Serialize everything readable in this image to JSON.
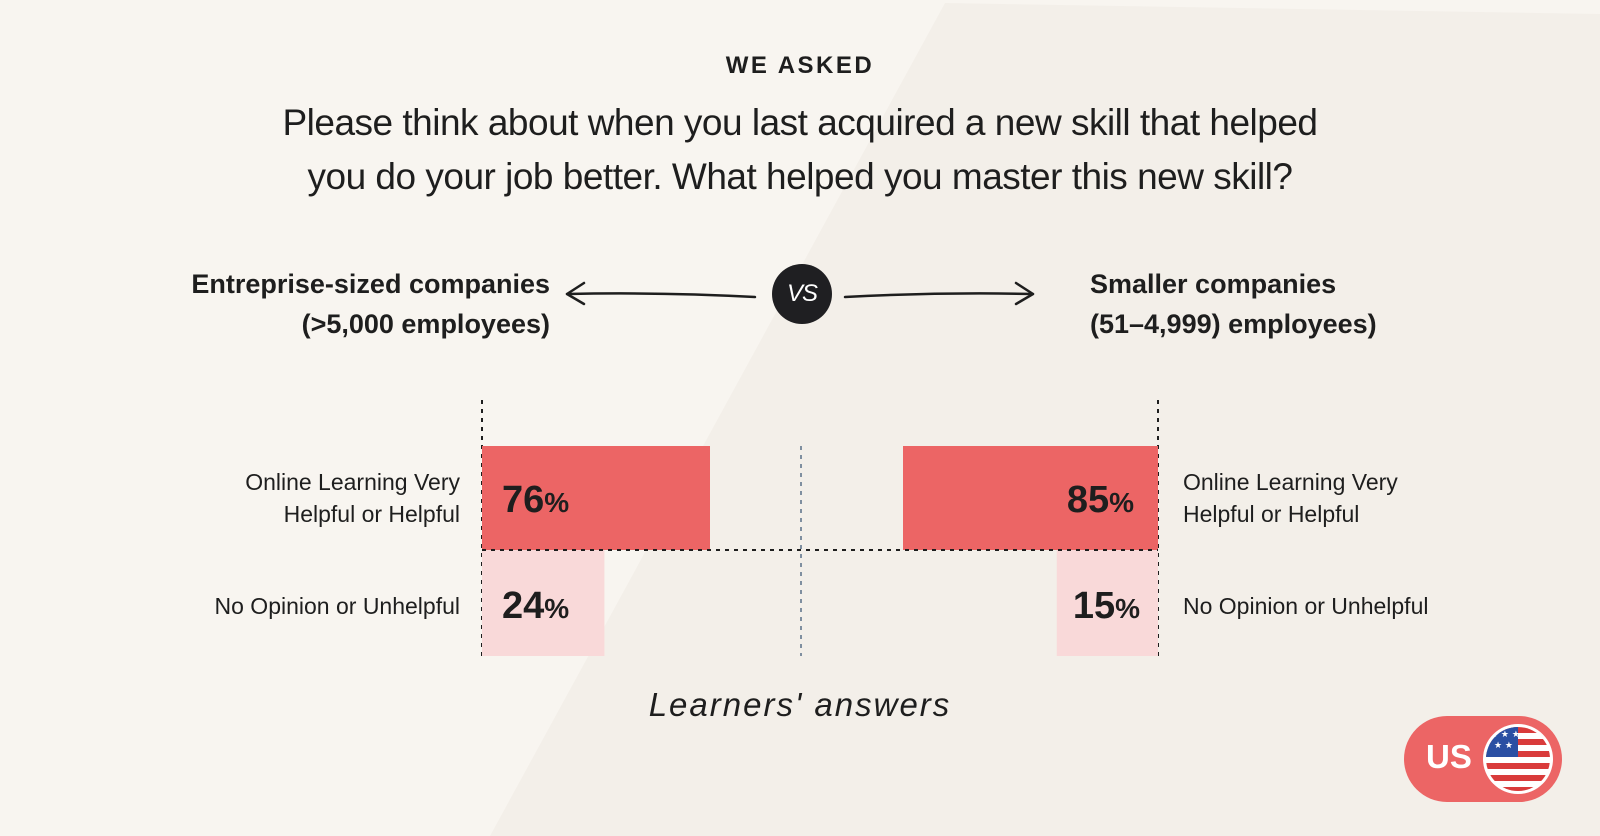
{
  "header": {
    "eyebrow": "WE ASKED",
    "question_line1": "Please think about when you last acquired a new skill that helped",
    "question_line2": "you do your job better. What helped you master this new skill?"
  },
  "comparison": {
    "left_group_line1": "Entreprise-sized companies",
    "left_group_line2": "(>5,000 employees)",
    "vs_label": "VS",
    "right_group_line1": "Smaller companies",
    "right_group_line2": "(51–4,999) employees)"
  },
  "row_labels": {
    "helpful_line1": "Online Learning Very",
    "helpful_line2": "Helpful or Helpful",
    "unhelpful": "No Opinion or Unhelpful"
  },
  "caption": "Learners' answers",
  "region_badge": {
    "label": "US",
    "icon": "us-flag-icon"
  },
  "colors": {
    "background": "#f8f5f0",
    "bar_helpful": "#ec6565",
    "bar_unhelpful": "#f9d9d9",
    "text": "#1e1e1e",
    "badge": "#ec6565"
  },
  "chart_data": {
    "type": "bar",
    "categories": [
      "Online Learning Very Helpful or Helpful",
      "No Opinion or Unhelpful"
    ],
    "series": [
      {
        "name": "Entreprise-sized companies (>5,000 employees)",
        "values": [
          76,
          24
        ]
      },
      {
        "name": "Smaller companies (51–4,999) employees)",
        "values": [
          85,
          15
        ]
      }
    ],
    "unit": "%",
    "ylim": [
      0,
      100
    ]
  }
}
